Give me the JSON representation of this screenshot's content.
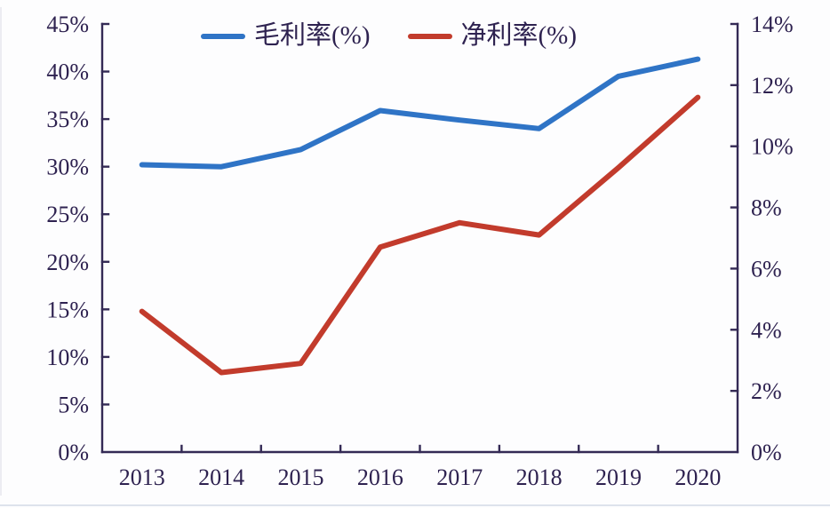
{
  "chart_data": {
    "type": "line",
    "title": "",
    "categories": [
      "2013",
      "2014",
      "2015",
      "2016",
      "2017",
      "2018",
      "2019",
      "2020"
    ],
    "series": [
      {
        "name": "毛利率(%)",
        "axis": "left",
        "color": "#2f74c6",
        "values": [
          30.2,
          30.0,
          31.8,
          35.9,
          34.9,
          34.0,
          39.5,
          41.3
        ]
      },
      {
        "name": "净利率(%)",
        "axis": "right",
        "color": "#c23b2c",
        "values": [
          4.6,
          2.6,
          2.9,
          6.7,
          7.5,
          7.1,
          9.3,
          11.6
        ]
      }
    ],
    "left_axis": {
      "min": 0,
      "max": 45,
      "step": 5,
      "tick_labels": [
        "0%",
        "5%",
        "10%",
        "15%",
        "20%",
        "25%",
        "30%",
        "35%",
        "40%",
        "45%"
      ]
    },
    "right_axis": {
      "min": 0,
      "max": 14,
      "step": 2,
      "tick_labels": [
        "0%",
        "2%",
        "4%",
        "6%",
        "8%",
        "10%",
        "12%",
        "14%"
      ]
    },
    "grid": false,
    "legend_position": "top-center"
  },
  "colors": {
    "axis_line": "#342a55",
    "tick_text": "#2e2250",
    "background": "#fdfdfe"
  }
}
